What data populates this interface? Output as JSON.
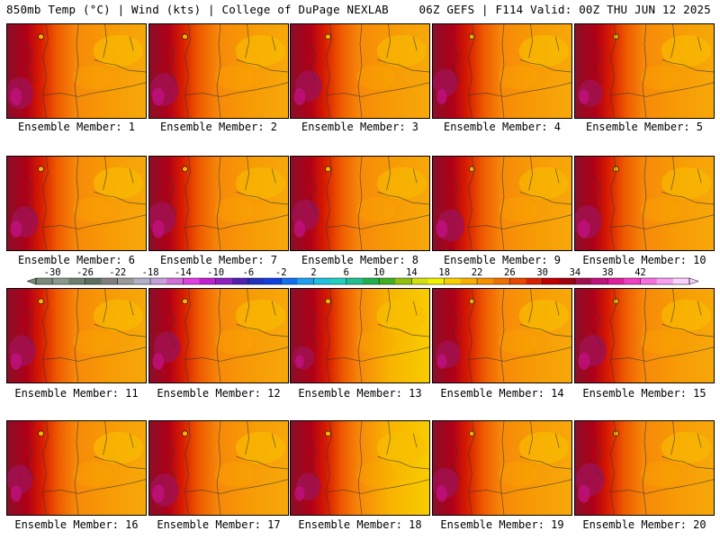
{
  "header": {
    "left": "850mb Temp (°C) | Wind (kts) | College of DuPage NEXLAB",
    "right": "06Z GEFS | F114 Valid: 00Z THU JUN 12 2025"
  },
  "members": [
    {
      "label": "Ensemble Member: 1",
      "west_heat": 0.82,
      "east_cool": 0.55
    },
    {
      "label": "Ensemble Member: 2",
      "west_heat": 0.85,
      "east_cool": 0.5
    },
    {
      "label": "Ensemble Member: 3",
      "west_heat": 0.8,
      "east_cool": 0.45
    },
    {
      "label": "Ensemble Member: 4",
      "west_heat": 0.72,
      "east_cool": 0.6
    },
    {
      "label": "Ensemble Member: 5",
      "west_heat": 0.7,
      "east_cool": 0.5
    },
    {
      "label": "Ensemble Member: 6",
      "west_heat": 0.8,
      "east_cool": 0.5
    },
    {
      "label": "Ensemble Member: 7",
      "west_heat": 0.85,
      "east_cool": 0.45
    },
    {
      "label": "Ensemble Member: 8",
      "west_heat": 0.8,
      "east_cool": 0.45
    },
    {
      "label": "Ensemble Member: 9",
      "west_heat": 0.83,
      "east_cool": 0.45
    },
    {
      "label": "Ensemble Member: 10",
      "west_heat": 0.85,
      "east_cool": 0.45
    },
    {
      "label": "Ensemble Member: 11",
      "west_heat": 0.8,
      "east_cool": 0.55
    },
    {
      "label": "Ensemble Member: 12",
      "west_heat": 0.8,
      "east_cool": 0.55
    },
    {
      "label": "Ensemble Member: 13",
      "west_heat": 0.6,
      "east_cool": 0.75
    },
    {
      "label": "Ensemble Member: 14",
      "west_heat": 0.7,
      "east_cool": 0.6
    },
    {
      "label": "Ensemble Member: 15",
      "west_heat": 0.82,
      "east_cool": 0.55
    },
    {
      "label": "Ensemble Member: 16",
      "west_heat": 0.75,
      "east_cool": 0.5
    },
    {
      "label": "Ensemble Member: 17",
      "west_heat": 0.85,
      "east_cool": 0.5
    },
    {
      "label": "Ensemble Member: 18",
      "west_heat": 0.7,
      "east_cool": 0.8
    },
    {
      "label": "Ensemble Member: 19",
      "west_heat": 0.78,
      "east_cool": 0.55
    },
    {
      "label": "Ensemble Member: 20",
      "west_heat": 0.85,
      "east_cool": 0.45
    }
  ],
  "colorbar": {
    "ticks": [
      "-30",
      "-26",
      "-22",
      "-18",
      "-14",
      "-10",
      "-6",
      "-2",
      "2",
      "6",
      "10",
      "14",
      "18",
      "22",
      "26",
      "30",
      "34",
      "38",
      "42"
    ],
    "colors": [
      "#7a8a7a",
      "#8a9a8a",
      "#6f7f6f",
      "#5f6f5f",
      "#7f7f7f",
      "#9a9a9a",
      "#b0b0c8",
      "#c8a0d8",
      "#d070d8",
      "#e040e0",
      "#c020d0",
      "#9020c0",
      "#5020b0",
      "#2030c0",
      "#1040e0",
      "#1070f0",
      "#20a0f0",
      "#20c0e0",
      "#20d0c0",
      "#20c090",
      "#20b050",
      "#40b020",
      "#90c010",
      "#d0e010",
      "#f0f000",
      "#f8d000",
      "#f8b000",
      "#f89000",
      "#f07000",
      "#e84800",
      "#d82000",
      "#c00000",
      "#a00010",
      "#a01050",
      "#c01080",
      "#e020a0",
      "#f040c0",
      "#f870e0",
      "#f8a0f0",
      "#fcd0fc"
    ]
  }
}
